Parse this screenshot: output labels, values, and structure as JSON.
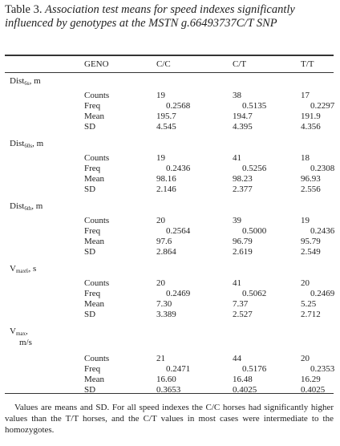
{
  "title": {
    "label": "Table 3.",
    "text": "Association test means for speed indexes significantly influenced by genotypes at the MSTN g.66493737C/T SNP"
  },
  "table": {
    "columns": [
      "GENO",
      "C/C",
      "C/T",
      "T/T"
    ],
    "groups": [
      {
        "name": "Dist",
        "sub": "6s",
        "unit": ", m",
        "rows": [
          [
            "Counts",
            "19",
            "38",
            "17"
          ],
          [
            "Freq",
            "0.2568",
            "0.5135",
            "0.2297"
          ],
          [
            "Mean",
            "195.7",
            "194.7",
            "191.9"
          ],
          [
            "SD",
            "4.545",
            "4.395",
            "4.356"
          ]
        ]
      },
      {
        "name": "Dist",
        "sub": "60s",
        "unit": ", m",
        "rows": [
          [
            "Counts",
            "19",
            "41",
            "18"
          ],
          [
            "Freq",
            "0.2436",
            "0.5256",
            "0.2308"
          ],
          [
            "Mean",
            "98.16",
            "98.23",
            "96.93"
          ],
          [
            "SD",
            "2.146",
            "2.377",
            "2.556"
          ]
        ]
      },
      {
        "name": "Dist",
        "sub": "6th",
        "unit": ", m",
        "rows": [
          [
            "Counts",
            "20",
            "39",
            "19"
          ],
          [
            "Freq",
            "0.2564",
            "0.5000",
            "0.2436"
          ],
          [
            "Mean",
            "97.6",
            "96.79",
            "95.79"
          ],
          [
            "SD",
            "2.864",
            "2.619",
            "2.549"
          ]
        ]
      },
      {
        "name": "V",
        "sub": "max6",
        "unit": ", s",
        "rows": [
          [
            "Counts",
            "20",
            "41",
            "20"
          ],
          [
            "Freq",
            "0.2469",
            "0.5062",
            "0.2469"
          ],
          [
            "Mean",
            "7.30",
            "7.37",
            "5.25"
          ],
          [
            "SD",
            "3.389",
            "2.527",
            "2.712"
          ]
        ]
      },
      {
        "name": "V",
        "sub": "max",
        "unit": ",",
        "unit2": "m/s",
        "rows": [
          [
            "Counts",
            "21",
            "44",
            "20"
          ],
          [
            "Freq",
            "0.2471",
            "0.5176",
            "0.2353"
          ],
          [
            "Mean",
            "16.60",
            "16.48",
            "16.29"
          ],
          [
            "SD",
            "0.3653",
            "0.4025",
            "0.4025"
          ]
        ]
      }
    ]
  },
  "footnote": "Values are means and SD. For all speed indexes the C/C horses had significantly higher values than the T/T horses, and the C/T values in most cases were intermediate to the homozygotes."
}
